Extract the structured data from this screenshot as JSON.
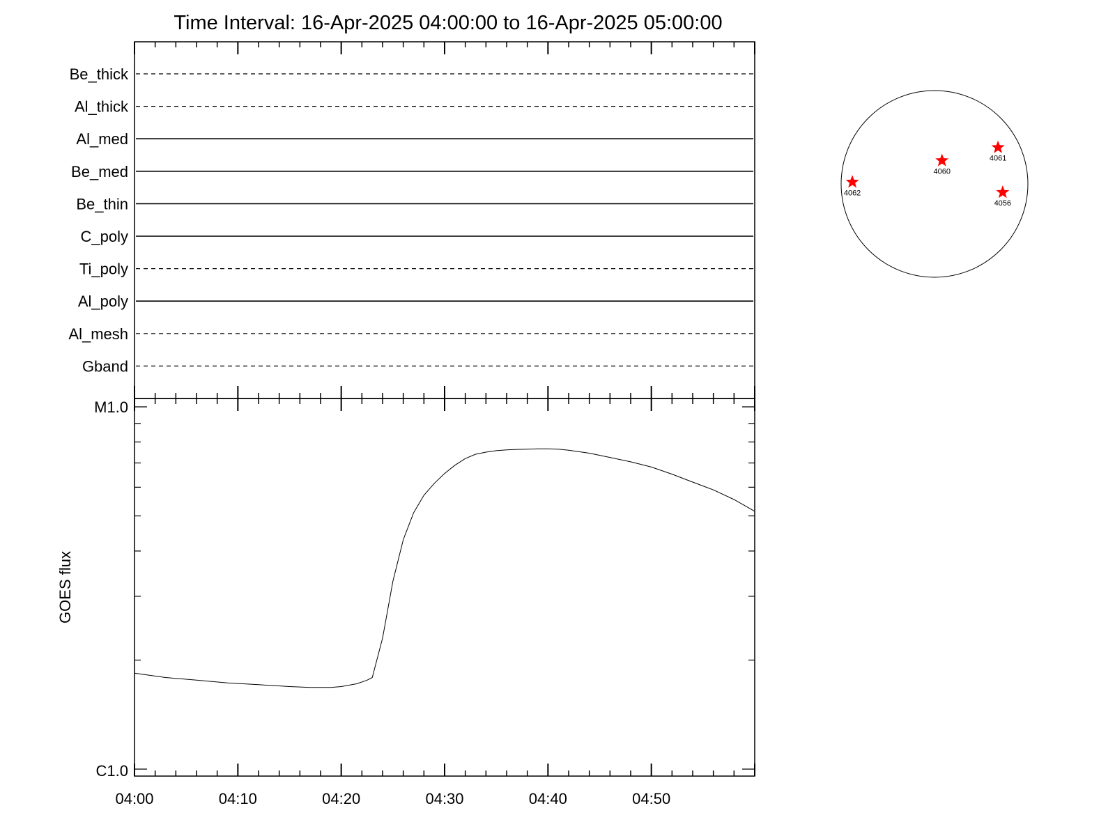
{
  "title": "Time Interval: 16-Apr-2025 04:00:00 to 16-Apr-2025 05:00:00",
  "colors": {
    "axis": "#000000",
    "curve": "#000000",
    "marker": "#ff0000"
  },
  "chart_data": [
    {
      "type": "line",
      "name": "filter-timeline",
      "x_range": [
        "04:00",
        "05:00"
      ],
      "rows": [
        {
          "label": "Be_thick",
          "style": "dashed"
        },
        {
          "label": "Al_thick",
          "style": "dashed"
        },
        {
          "label": "Al_med",
          "style": "solid"
        },
        {
          "label": "Be_med",
          "style": "solid"
        },
        {
          "label": "Be_thin",
          "style": "solid"
        },
        {
          "label": "C_poly",
          "style": "solid"
        },
        {
          "label": "Ti_poly",
          "style": "dashed"
        },
        {
          "label": "Al_poly",
          "style": "solid"
        },
        {
          "label": "Al_mesh",
          "style": "dashed"
        },
        {
          "label": "Gband",
          "style": "dashed"
        }
      ]
    },
    {
      "type": "line",
      "name": "goes-flux",
      "ylabel": "GOES flux",
      "yscale": "log",
      "ylim": [
        1e-06,
        1e-05
      ],
      "ytick_labels": [
        {
          "value": 1e-06,
          "label": "C1.0"
        },
        {
          "value": 1e-05,
          "label": "M1.0"
        }
      ],
      "xlim": [
        0,
        60
      ],
      "xtick_labels": [
        "04:00",
        "04:10",
        "04:20",
        "04:30",
        "04:40",
        "04:50"
      ],
      "xtick_values": [
        0,
        10,
        20,
        30,
        40,
        50
      ],
      "x": [
        0,
        3,
        6,
        9,
        12,
        15,
        17,
        19,
        20,
        21.5,
        22.5,
        23,
        24,
        25,
        26,
        27,
        28,
        29,
        30,
        31,
        32,
        33,
        34,
        35,
        36,
        37,
        38,
        39,
        40,
        41,
        42,
        44,
        46,
        48,
        50,
        52,
        54,
        56,
        58,
        60
      ],
      "y": [
        1.84e-06,
        1.79e-06,
        1.76e-06,
        1.73e-06,
        1.71e-06,
        1.69e-06,
        1.68e-06,
        1.68e-06,
        1.69e-06,
        1.72e-06,
        1.76e-06,
        1.79e-06,
        2.3e-06,
        3.3e-06,
        4.3e-06,
        5.1e-06,
        5.7e-06,
        6.15e-06,
        6.55e-06,
        6.9e-06,
        7.2e-06,
        7.4e-06,
        7.5e-06,
        7.57e-06,
        7.61e-06,
        7.63e-06,
        7.64e-06,
        7.66e-06,
        7.66e-06,
        7.64e-06,
        7.59e-06,
        7.45e-06,
        7.25e-06,
        7.05e-06,
        6.82e-06,
        6.52e-06,
        6.2e-06,
        5.9e-06,
        5.55e-06,
        5.15e-06
      ]
    }
  ],
  "disk": {
    "markers": [
      {
        "label": "4060",
        "x": 0.08,
        "y": 0.25
      },
      {
        "label": "4061",
        "x": 0.68,
        "y": 0.39
      },
      {
        "label": "4056",
        "x": 0.73,
        "y": -0.09
      },
      {
        "label": "4062",
        "x": -0.88,
        "y": 0.02
      }
    ]
  }
}
